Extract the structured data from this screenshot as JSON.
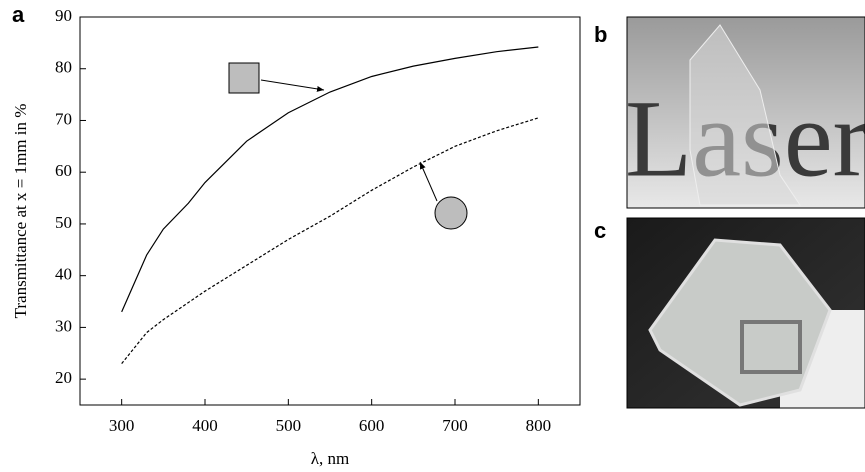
{
  "chart_data": {
    "type": "line",
    "panel_labels": [
      "a",
      "b",
      "c"
    ],
    "x_label": "λ, nm",
    "y_label": "Transmittance at x = 1mm in %",
    "xlim": [
      250,
      850
    ],
    "xticks": [
      300,
      400,
      500,
      600,
      700,
      800
    ],
    "ylim": [
      15,
      90
    ],
    "yticks": [
      20,
      30,
      40,
      50,
      60,
      70,
      80,
      90
    ],
    "series": [
      {
        "symbol": "square",
        "color": "#000000",
        "dash": "solid",
        "x": [
          300,
          330,
          350,
          380,
          400,
          450,
          500,
          550,
          600,
          650,
          700,
          750,
          800
        ],
        "values": [
          33,
          44,
          49,
          54,
          58,
          66,
          71.5,
          75.5,
          78.5,
          80.5,
          82,
          83.3,
          84.2
        ]
      },
      {
        "symbol": "circle",
        "color": "#000000",
        "dash": "dashed",
        "x": [
          300,
          330,
          350,
          400,
          450,
          500,
          550,
          600,
          650,
          700,
          750,
          800
        ],
        "values": [
          23,
          29,
          31.5,
          37,
          42,
          47,
          51.5,
          56.5,
          61,
          65,
          68,
          70.5
        ]
      }
    ],
    "photo_text": "Laser"
  }
}
